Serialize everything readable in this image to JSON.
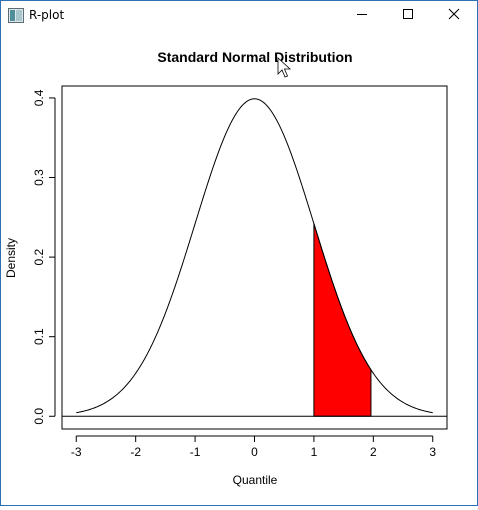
{
  "window": {
    "title": "R-plot",
    "icon": "r-graphics-icon",
    "controls": [
      "minimize-icon",
      "maximize-icon",
      "close-icon"
    ]
  },
  "chart_data": {
    "type": "line",
    "title": "Standard Normal Distribution",
    "xlabel": "Quantile",
    "ylabel": "Density",
    "xlim": [
      -3.24,
      3.24
    ],
    "ylim": [
      -0.016,
      0.415
    ],
    "xticks": [
      -3,
      -2,
      -1,
      0,
      1,
      2,
      3
    ],
    "xtick_labels": [
      "-3",
      "-2",
      "-1",
      "0",
      "1",
      "2",
      "3"
    ],
    "yticks": [
      0.0,
      0.1,
      0.2,
      0.3,
      0.4
    ],
    "ytick_labels": [
      "0.0",
      "0.1",
      "0.2",
      "0.3",
      "0.4"
    ],
    "curve": {
      "function": "standard normal density",
      "x_range": [
        -3,
        3
      ],
      "color": "#000000"
    },
    "reference_line": {
      "y": 0,
      "color": "#000000"
    },
    "shaded_region": {
      "from": 1,
      "to": 1.96,
      "fill": "#ff0000",
      "outline": "#000000"
    }
  }
}
